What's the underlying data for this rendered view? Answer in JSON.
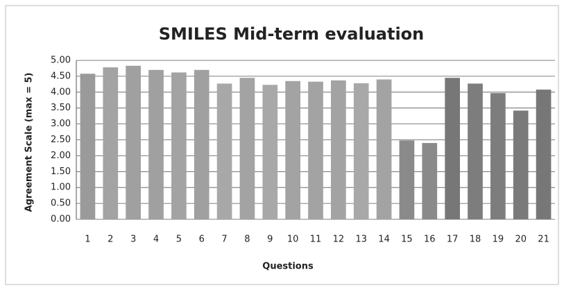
{
  "chart_data": {
    "type": "bar",
    "title": "SMILES Mid-term evaluation",
    "x_label": "Questions",
    "y_label": "Agreement Scale (max = 5)",
    "categories": [
      "1",
      "2",
      "3",
      "4",
      "5",
      "6",
      "7",
      "8",
      "9",
      "10",
      "11",
      "12",
      "13",
      "14",
      "15",
      "16",
      "17",
      "18",
      "19",
      "20",
      "21"
    ],
    "values": [
      4.58,
      4.78,
      4.83,
      4.7,
      4.62,
      4.7,
      4.27,
      4.45,
      4.23,
      4.35,
      4.33,
      4.37,
      4.28,
      4.4,
      2.48,
      2.4,
      4.45,
      4.27,
      3.97,
      3.42,
      4.08
    ],
    "colors": [
      "#9a9a9a",
      "#a3a3a3",
      "#a0a0a0",
      "#a0a0a0",
      "#a3a3a3",
      "#a0a0a0",
      "#a8a8a8",
      "#a3a3a3",
      "#a8a8a8",
      "#a3a3a3",
      "#a3a3a3",
      "#a3a3a3",
      "#a8a8a8",
      "#a3a3a3",
      "#8a8a8a",
      "#8a8a8a",
      "#777777",
      "#7d7d7d",
      "#7d7d7d",
      "#7a7a7a",
      "#777777"
    ],
    "ylim": [
      0,
      5
    ],
    "yticks": [
      {
        "value": 0,
        "label": "0.00"
      },
      {
        "value": 0.5,
        "label": "0.50"
      },
      {
        "value": 1,
        "label": "1.00"
      },
      {
        "value": 1.5,
        "label": "1.50"
      },
      {
        "value": 2,
        "label": "2.00"
      },
      {
        "value": 2.5,
        "label": "2.50"
      },
      {
        "value": 3,
        "label": "3.00"
      },
      {
        "value": 3.5,
        "label": "3.50"
      },
      {
        "value": 4,
        "label": "4.00"
      },
      {
        "value": 4.5,
        "label": "4.50"
      },
      {
        "value": 5,
        "label": "5.00"
      }
    ],
    "grid": true
  }
}
